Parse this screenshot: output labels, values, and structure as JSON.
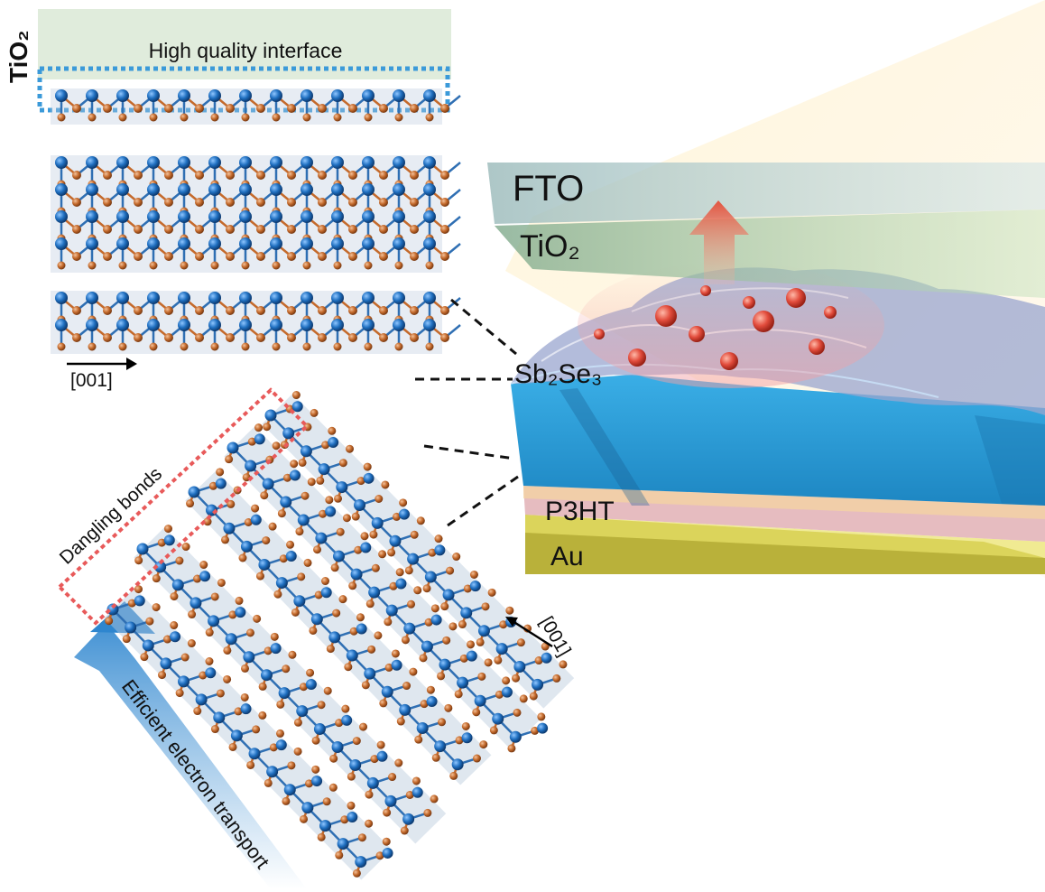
{
  "labels": {
    "tio2_side": "TiO₂",
    "interface": "High quality interface",
    "dir_top": "[001]",
    "dir_bottom": "[001]",
    "dangling": "Dangling bonds",
    "transport": "Efficient electron transport",
    "fto": "FTO",
    "tio2_layer": "TiO₂",
    "sb2se3": "Sb₂Se₃",
    "p3ht": "P3HT",
    "au": "Au"
  },
  "colors": {
    "sb_atom": "#1f6fc0",
    "se_atom": "#c46a2c",
    "bond_blue": "#2f6fb3",
    "polyhedron": "#b9c9dc",
    "interface_fill": "#dfeadb",
    "interface_box": "#3b9ad9",
    "dangling_box": "#e85a5a",
    "sb2se3_layer": "#2a9ad3",
    "p3ht_layer": "#d9a6b0",
    "au_layer": "#b9b13a",
    "electron": "#e24c3c"
  }
}
